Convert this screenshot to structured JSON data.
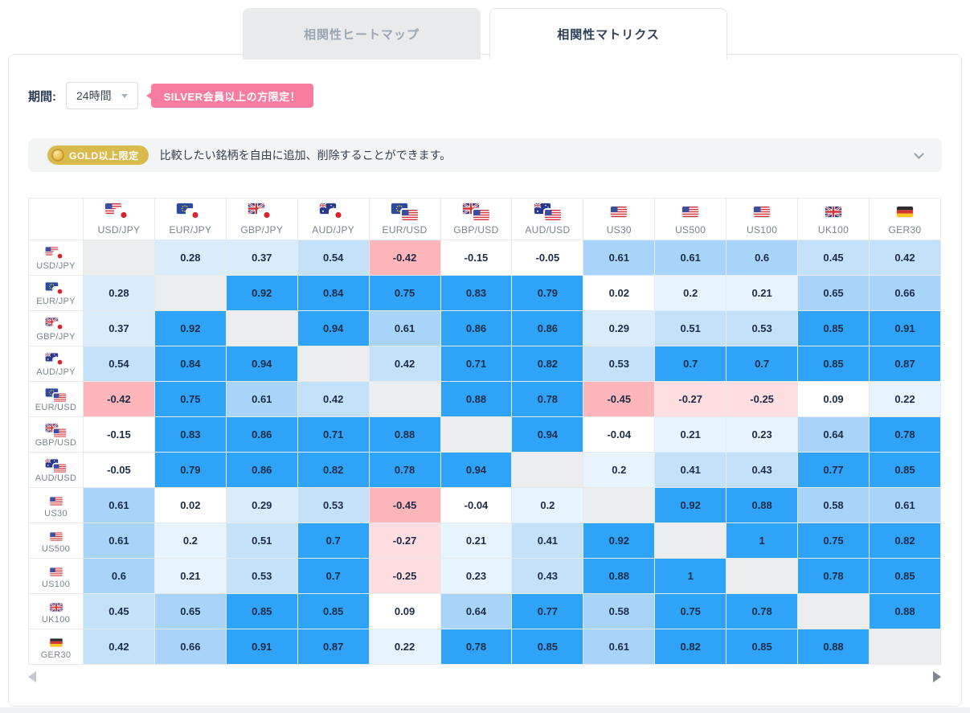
{
  "tabs": [
    {
      "label": "相関性ヒートマップ",
      "active": false
    },
    {
      "label": "相関性マトリクス",
      "active": true
    }
  ],
  "controls": {
    "period_label": "期間:",
    "period_value": "24時間",
    "silver_badge_label": "SILVER会員以上の方限定！"
  },
  "gold_banner": {
    "badge_label": "GOLD以上限定",
    "message": "比較したい銘柄を自由に追加、削除することができます。"
  },
  "colors": {
    "accent_pink": "#f87c9f",
    "gold_badge": "#d9ba4d",
    "inactive_tab_bg": "#e8eaec",
    "inactive_tab_text": "#9aa6b3",
    "active_tab_text": "#2f4158"
  },
  "chart_data": {
    "type": "heatmap",
    "title": "相関性マトリクス",
    "period": "24時間",
    "symbols": [
      {
        "label": "USD/JPY",
        "flags": [
          "us",
          "jp"
        ]
      },
      {
        "label": "EUR/JPY",
        "flags": [
          "eu",
          "jp"
        ]
      },
      {
        "label": "GBP/JPY",
        "flags": [
          "gb",
          "jp"
        ]
      },
      {
        "label": "AUD/JPY",
        "flags": [
          "au",
          "jp"
        ]
      },
      {
        "label": "EUR/USD",
        "flags": [
          "eu",
          "us"
        ]
      },
      {
        "label": "GBP/USD",
        "flags": [
          "gb",
          "us"
        ]
      },
      {
        "label": "AUD/USD",
        "flags": [
          "au",
          "us"
        ]
      },
      {
        "label": "US30",
        "flags": [
          "us"
        ]
      },
      {
        "label": "US500",
        "flags": [
          "us"
        ]
      },
      {
        "label": "US100",
        "flags": [
          "us"
        ]
      },
      {
        "label": "UK100",
        "flags": [
          "gb"
        ]
      },
      {
        "label": "GER30",
        "flags": [
          "de"
        ]
      }
    ],
    "matrix": [
      [
        null,
        0.28,
        0.37,
        0.54,
        -0.42,
        -0.15,
        -0.05,
        0.61,
        0.61,
        0.6,
        0.45,
        0.42
      ],
      [
        0.28,
        null,
        0.92,
        0.84,
        0.75,
        0.83,
        0.79,
        0.02,
        0.2,
        0.21,
        0.65,
        0.66
      ],
      [
        0.37,
        0.92,
        null,
        0.94,
        0.61,
        0.86,
        0.86,
        0.29,
        0.51,
        0.53,
        0.85,
        0.91
      ],
      [
        0.54,
        0.84,
        0.94,
        null,
        0.42,
        0.71,
        0.82,
        0.53,
        0.7,
        0.7,
        0.85,
        0.87
      ],
      [
        -0.42,
        0.75,
        0.61,
        0.42,
        null,
        0.88,
        0.78,
        -0.45,
        -0.27,
        -0.25,
        0.09,
        0.22
      ],
      [
        -0.15,
        0.83,
        0.86,
        0.71,
        0.88,
        null,
        0.94,
        -0.04,
        0.21,
        0.23,
        0.64,
        0.78
      ],
      [
        -0.05,
        0.79,
        0.86,
        0.82,
        0.78,
        0.94,
        null,
        0.2,
        0.41,
        0.43,
        0.77,
        0.85
      ],
      [
        0.61,
        0.02,
        0.29,
        0.53,
        -0.45,
        -0.04,
        0.2,
        null,
        0.92,
        0.88,
        0.58,
        0.61
      ],
      [
        0.61,
        0.2,
        0.51,
        0.7,
        -0.27,
        0.21,
        0.41,
        0.92,
        null,
        1,
        0.75,
        0.82
      ],
      [
        0.6,
        0.21,
        0.53,
        0.7,
        -0.25,
        0.23,
        0.43,
        0.88,
        1,
        null,
        0.78,
        0.85
      ],
      [
        0.45,
        0.65,
        0.85,
        0.85,
        0.09,
        0.64,
        0.77,
        0.58,
        0.75,
        0.78,
        null,
        0.88
      ],
      [
        0.42,
        0.66,
        0.91,
        0.87,
        0.22,
        0.78,
        0.85,
        0.61,
        0.82,
        0.85,
        0.88,
        null
      ]
    ],
    "heatmap_scale": [
      {
        "min": 0.7,
        "color": "#2ea3f7"
      },
      {
        "min": 0.55,
        "color": "#a7d4f8"
      },
      {
        "min": 0.4,
        "color": "#c3e2fa"
      },
      {
        "min": 0.25,
        "color": "#d8ecfc"
      },
      {
        "min": 0.15,
        "color": "#e8f4fd"
      },
      {
        "min": -0.2,
        "color": "#ffffff"
      },
      {
        "min": -0.4,
        "color": "#ffdee1"
      },
      {
        "min": -1,
        "color": "#ffb6ba"
      }
    ],
    "diagonal_color": "#ebedef"
  }
}
